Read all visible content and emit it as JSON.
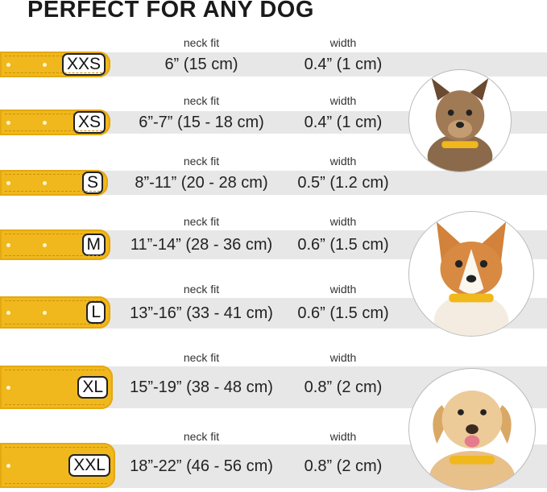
{
  "title": "PERFECT FOR ANY DOG",
  "column_labels": {
    "neck_fit": "neck fit",
    "width": "width"
  },
  "colors": {
    "collar": "#f0b81c",
    "band": "#e7e7e7"
  },
  "sizes": [
    {
      "size": "XXS",
      "neck_fit": "6” (15 cm)",
      "width": "0.4” (1 cm)"
    },
    {
      "size": "XS",
      "neck_fit": "6”-7” (15 - 18 cm)",
      "width": "0.4” (1 cm)"
    },
    {
      "size": "S",
      "neck_fit": "8”-11” (20 - 28 cm)",
      "width": "0.5” (1.2 cm)"
    },
    {
      "size": "M",
      "neck_fit": "11”-14” (28 - 36 cm)",
      "width": "0.6” (1.5 cm)"
    },
    {
      "size": "L",
      "neck_fit": "13”-16” (33 - 41 cm)",
      "width": "0.6” (1.5 cm)"
    },
    {
      "size": "XL",
      "neck_fit": "15”-19” (38 - 48 cm)",
      "width": "0.8” (2 cm)"
    },
    {
      "size": "XXL",
      "neck_fit": "18”-22” (46 - 56 cm)",
      "width": "0.8” (2 cm)"
    }
  ],
  "images": [
    "small-terrier-photo",
    "corgi-photo",
    "labrador-photo"
  ]
}
